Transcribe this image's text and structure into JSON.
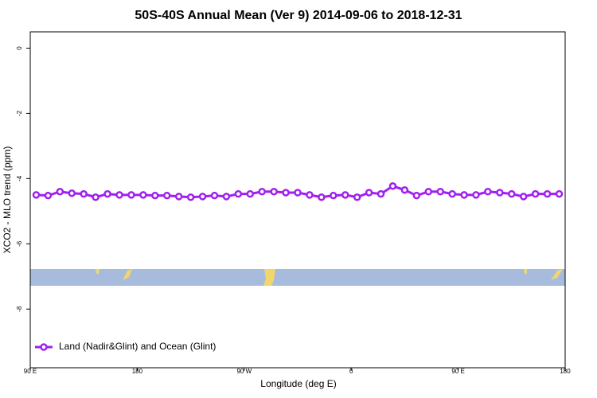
{
  "chart_data": {
    "type": "line",
    "title": "50S-40S Annual Mean (Ver 9)   2014-09-06 to 2018-12-31",
    "x_label": "Longitude (deg E)",
    "y_label": "XCO2 - MLO trend (ppm)",
    "x": [
      95,
      105,
      115,
      125,
      135,
      145,
      155,
      165,
      175,
      185,
      195,
      205,
      215,
      225,
      235,
      245,
      255,
      265,
      275,
      285,
      295,
      305,
      315,
      325,
      335,
      345,
      355,
      365,
      375,
      385,
      395,
      405,
      415,
      425,
      435,
      445,
      455,
      465,
      475,
      485,
      495,
      505,
      515,
      525,
      535
    ],
    "series": [
      {
        "name": "Land (Nadir&Glint) and Ocean (Glint)",
        "color": "#a020f0",
        "values": [
          -4.5,
          -4.52,
          -4.4,
          -4.45,
          -4.47,
          -4.57,
          -4.47,
          -4.5,
          -4.5,
          -4.5,
          -4.52,
          -4.52,
          -4.55,
          -4.57,
          -4.55,
          -4.52,
          -4.55,
          -4.47,
          -4.47,
          -4.4,
          -4.4,
          -4.43,
          -4.43,
          -4.5,
          -4.57,
          -4.52,
          -4.5,
          -4.57,
          -4.43,
          -4.47,
          -4.23,
          -4.35,
          -4.52,
          -4.4,
          -4.4,
          -4.47,
          -4.5,
          -4.5,
          -4.4,
          -4.43,
          -4.47,
          -4.55,
          -4.47,
          -4.47,
          -4.47
        ]
      }
    ],
    "xlim": [
      90,
      540
    ],
    "xticks": [
      {
        "value": 90,
        "label": "90 E"
      },
      {
        "value": 180,
        "label": "180"
      },
      {
        "value": 270,
        "label": "90 W"
      },
      {
        "value": 360,
        "label": "0"
      },
      {
        "value": 450,
        "label": "90 E"
      },
      {
        "value": 540,
        "label": "180"
      }
    ],
    "ylim": [
      -9.8,
      0.5
    ],
    "yticks": [
      0,
      -2,
      -4,
      -6,
      -8
    ],
    "legend": "bottom-left"
  }
}
